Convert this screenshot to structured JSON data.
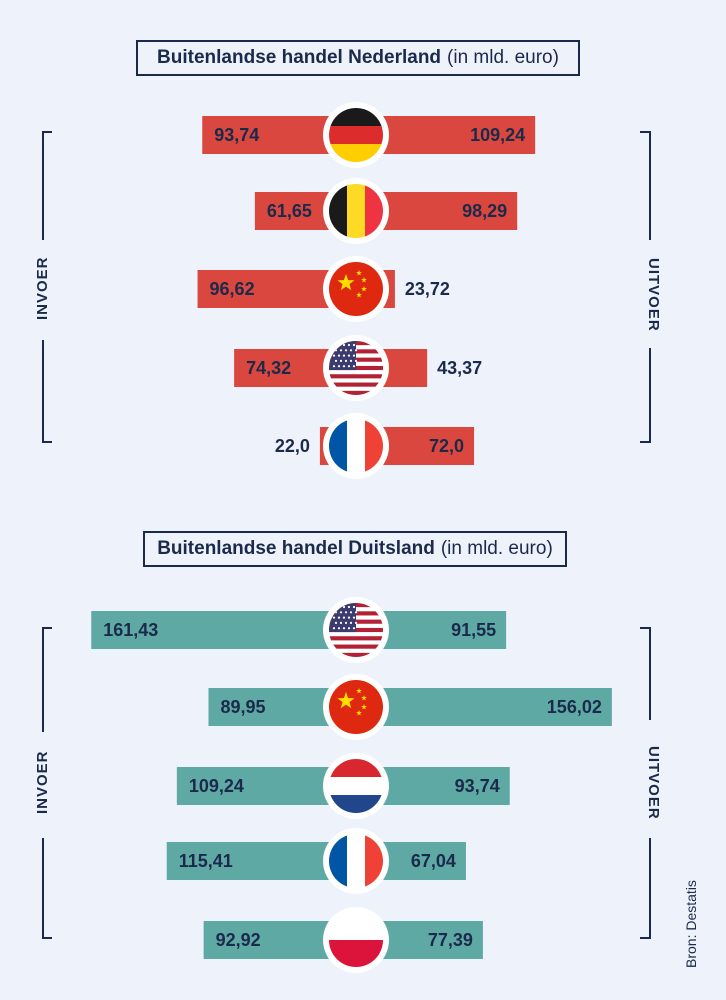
{
  "colors": {
    "netherlands_bar": "#d9473f",
    "germany_bar": "#5fa9a5",
    "text": "#1b2a4a",
    "background": "#eef2fb"
  },
  "labels": {
    "invoer": "INVOER",
    "uitvoer": "UITVOER",
    "source": "Bron: Destatis"
  },
  "chart_data": [
    {
      "type": "bar",
      "title": "Buitenlandse handel Nederland",
      "subtitle": "(in mld. euro)",
      "categories": [
        "germany-flag",
        "belgium-flag",
        "china-flag",
        "usa-flag",
        "france-flag"
      ],
      "series": [
        {
          "name": "INVOER",
          "values": [
            93.74,
            61.65,
            96.62,
            74.32,
            22.0
          ],
          "labels": [
            "93,74",
            "61,65",
            "96,62",
            "74,32",
            "22,0"
          ]
        },
        {
          "name": "UITVOER",
          "values": [
            109.24,
            98.29,
            23.72,
            43.37,
            72.0
          ],
          "labels": [
            "109,24",
            "98,29",
            "23,72",
            "43,37",
            "72,0"
          ]
        }
      ]
    },
    {
      "type": "bar",
      "title": "Buitenlandse handel Duitsland",
      "subtitle": "(in mld. euro)",
      "categories": [
        "usa-flag",
        "china-flag",
        "netherlands-flag",
        "france-flag",
        "poland-flag"
      ],
      "series": [
        {
          "name": "INVOER",
          "values": [
            161.43,
            89.95,
            109.24,
            115.41,
            92.92
          ],
          "labels": [
            "161,43",
            "89,95",
            "109,24",
            "115,41",
            "92,92"
          ]
        },
        {
          "name": "UITVOER",
          "values": [
            91.55,
            156.02,
            93.74,
            67.04,
            77.39
          ],
          "labels": [
            "91,55",
            "156,02",
            "93,74",
            "67,04",
            "77,39"
          ]
        }
      ]
    }
  ]
}
